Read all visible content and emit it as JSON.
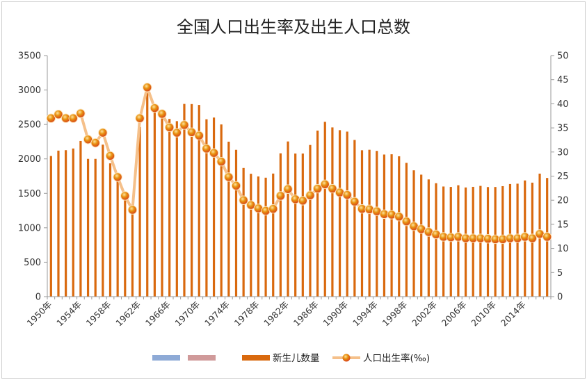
{
  "chart_data": {
    "type": "bar",
    "title": "全国人口出生率及出生人口总数",
    "x": [
      1950,
      1951,
      1952,
      1953,
      1954,
      1955,
      1956,
      1957,
      1958,
      1959,
      1960,
      1961,
      1962,
      1963,
      1964,
      1965,
      1966,
      1967,
      1968,
      1969,
      1970,
      1971,
      1972,
      1973,
      1974,
      1975,
      1976,
      1977,
      1978,
      1979,
      1980,
      1981,
      1982,
      1983,
      1984,
      1985,
      1986,
      1987,
      1988,
      1989,
      1990,
      1991,
      1992,
      1993,
      1994,
      1995,
      1996,
      1997,
      1998,
      1999,
      2000,
      2001,
      2002,
      2003,
      2004,
      2005,
      2006,
      2007,
      2008,
      2009,
      2010,
      2011,
      2012,
      2013,
      2014,
      2015,
      2016,
      2017
    ],
    "x_tick_labels": [
      "1950年",
      "1954年",
      "1958年",
      "1962年",
      "1966年",
      "1970年",
      "1974年",
      "1978年",
      "1982年",
      "1986年",
      "1990年",
      "1994年",
      "1998年",
      "2002年",
      "2006年",
      "2010年",
      "2014年"
    ],
    "y_left": {
      "range": [
        0,
        3500
      ],
      "ticks": [
        0,
        500,
        1000,
        1500,
        2000,
        2500,
        3000,
        3500
      ]
    },
    "y_right": {
      "range": [
        0,
        50
      ],
      "ticks": [
        0,
        5,
        10,
        15,
        20,
        25,
        30,
        35,
        40,
        45,
        50
      ]
    },
    "series": [
      {
        "name": "新生儿数量",
        "type": "bar",
        "axis": "left",
        "color": "#d9690e",
        "values": [
          2042,
          2120,
          2126,
          2151,
          2260,
          2000,
          2000,
          2207,
          1935,
          1690,
          1400,
          1203,
          2463,
          2960,
          2728,
          2710,
          2580,
          2548,
          2798,
          2796,
          2783,
          2575,
          2600,
          2500,
          2250,
          2131,
          1868,
          1784,
          1745,
          1727,
          1787,
          2081,
          2253,
          2078,
          2078,
          2202,
          2411,
          2538,
          2457,
          2417,
          2396,
          2275,
          2125,
          2132,
          2116,
          2063,
          2067,
          2038,
          1942,
          1834,
          1771,
          1702,
          1647,
          1599,
          1593,
          1617,
          1585,
          1594,
          1608,
          1591,
          1592,
          1604,
          1635,
          1640,
          1687,
          1655,
          1786,
          1723
        ]
      },
      {
        "name": "人口出生率(‰)",
        "type": "line",
        "axis": "right",
        "color": "#f5c08a",
        "marker_color": "#e8920f",
        "values": [
          37.0,
          37.8,
          37.0,
          37.0,
          38.0,
          32.6,
          31.9,
          34.0,
          29.2,
          24.8,
          20.9,
          18.0,
          37.0,
          43.4,
          39.1,
          37.9,
          35.1,
          34.0,
          35.6,
          34.1,
          33.4,
          30.7,
          29.8,
          28.0,
          24.8,
          23.0,
          20.0,
          19.0,
          18.3,
          17.8,
          18.2,
          20.9,
          22.3,
          20.2,
          19.9,
          21.0,
          22.4,
          23.3,
          22.4,
          21.6,
          21.1,
          19.7,
          18.2,
          18.1,
          17.7,
          17.1,
          17.0,
          16.6,
          15.6,
          14.6,
          14.0,
          13.4,
          12.9,
          12.4,
          12.3,
          12.4,
          12.1,
          12.1,
          12.1,
          12.0,
          11.9,
          11.9,
          12.1,
          12.1,
          12.4,
          12.1,
          13.0,
          12.4
        ]
      }
    ],
    "legend": {
      "position": "bottom",
      "entries": [
        {
          "name": "",
          "color": "#8eaad6"
        },
        {
          "name": "",
          "color": "#d09a9a"
        },
        {
          "name": "新生儿数量",
          "color": "#d9690e"
        },
        {
          "name": "人口出生率(‰)",
          "color": "#f5c08a"
        }
      ]
    },
    "grid": false
  }
}
